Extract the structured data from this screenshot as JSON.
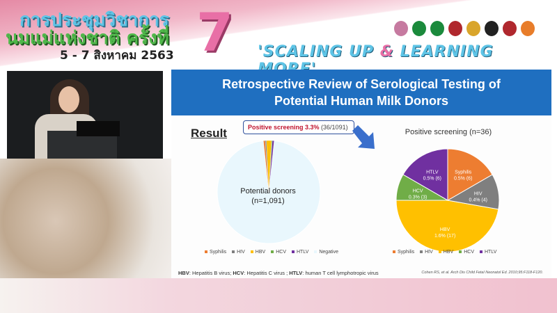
{
  "banner": {
    "title_line1": "การประชุมวิชาการ",
    "title_line2": "นมแม่แห่งชาติ ครั้งที่",
    "dates": "5 - 7 สิงหาคม 2563",
    "edition": "7",
    "tagline_a": "'SCALING UP ",
    "tagline_amp": "&",
    "tagline_b": " LEARNING MORE'",
    "logo_colors": [
      "#c67aa0",
      "#1b8a3c",
      "#1b8a3c",
      "#b0282e",
      "#d9a52b",
      "#222222",
      "#b0282e",
      "#e87d2a"
    ]
  },
  "slide": {
    "title_line1": "Retrospective Review of Serological Testing of",
    "title_line2": "Potential Human Milk Donors",
    "result_heading": "Result",
    "callout_bold": "Positive screening 3.3%",
    "callout_rest": " (36/1091)",
    "left_pie_label_1": "Potential donors",
    "left_pie_label_2": "(n=1,091)",
    "footnote_parts": [
      "HBV",
      ": Hepatitis B virus; ",
      "HCV",
      ": Hepatitis C virus ; ",
      "HTLV",
      ": human T cell lymphotropic virus"
    ],
    "citation": "Cohen RS, et al. Arch Dis Child Fetal Neonatol Ed. 2010;95:F118-F120."
  },
  "chart_data": [
    {
      "type": "pie",
      "title": "",
      "categories": [
        "Syphilis",
        "HIV",
        "HBV",
        "HCV",
        "HTLV",
        "Negative"
      ],
      "values": [
        6,
        4,
        17,
        3,
        6,
        1055
      ],
      "colors": [
        "#ed7d31",
        "#7f7f7f",
        "#ffc000",
        "#70ad47",
        "#7030a0",
        "#e9f7fd"
      ],
      "legend": "bottom"
    },
    {
      "type": "pie",
      "title": "Positive screening (n=36)",
      "categories": [
        "Syphilis",
        "HIV",
        "HBV",
        "HCV",
        "HTLV"
      ],
      "values": [
        6,
        4,
        17,
        3,
        6
      ],
      "labels": [
        "0.5% (6)",
        "0.4% (4)",
        "1.6% (17)",
        "0.3% (3)",
        "0.5% (6)"
      ],
      "colors": [
        "#ed7d31",
        "#7f7f7f",
        "#ffc000",
        "#70ad47",
        "#7030a0"
      ],
      "legend": "bottom"
    }
  ]
}
